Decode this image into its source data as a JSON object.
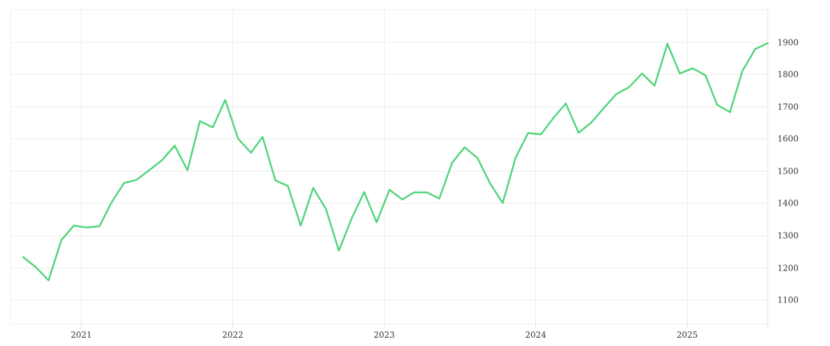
{
  "colors": {
    "line": "#4fd57a",
    "grid": "#ececec",
    "tick_text": "#333333",
    "background": "#ffffff"
  },
  "chart_data": {
    "type": "line",
    "title": "",
    "xlabel": "",
    "ylabel": "",
    "grid": true,
    "y_axis_position": "right",
    "ylim": [
      1025,
      2000
    ],
    "y_ticks": [
      1100,
      1200,
      1300,
      1400,
      1500,
      1600,
      1700,
      1800,
      1900
    ],
    "y_tick_labels": [
      "1100",
      "1200",
      "1300",
      "1400",
      "1500",
      "1600",
      "1700",
      "1800",
      "1900"
    ],
    "xlim": [
      "2020-07-15",
      "2025-07-15"
    ],
    "x_ticks": [
      "2021-01-01",
      "2022-01-01",
      "2023-01-01",
      "2024-01-01",
      "2025-01-01"
    ],
    "x_tick_labels": [
      "2021",
      "2022",
      "2023",
      "2024",
      "2025"
    ],
    "series": [
      {
        "x": [
          "2020-08",
          "2020-09",
          "2020-10",
          "2020-11",
          "2020-12",
          "2021-01",
          "2021-02",
          "2021-03",
          "2021-04",
          "2021-05",
          "2021-06",
          "2021-07",
          "2021-08",
          "2021-09",
          "2021-10",
          "2021-11",
          "2021-12",
          "2022-01",
          "2022-02",
          "2022-03",
          "2022-04",
          "2022-05",
          "2022-06",
          "2022-07",
          "2022-08",
          "2022-09",
          "2022-10",
          "2022-11",
          "2022-12",
          "2023-01",
          "2023-02",
          "2023-03",
          "2023-04",
          "2023-05",
          "2023-06",
          "2023-07",
          "2023-08",
          "2023-09",
          "2023-10",
          "2023-11",
          "2023-12",
          "2024-01",
          "2024-02",
          "2024-03",
          "2024-04",
          "2024-05",
          "2024-06",
          "2024-07",
          "2024-08",
          "2024-09",
          "2024-10",
          "2024-11",
          "2024-12",
          "2025-01",
          "2025-02",
          "2025-03",
          "2025-04",
          "2025-05",
          "2025-06",
          "2025-07"
        ],
        "values": [
          1232,
          1200,
          1160,
          1285,
          1330,
          1324,
          1328,
          1400,
          1462,
          1472,
          1502,
          1532,
          1578,
          1502,
          1654,
          1635,
          1720,
          1600,
          1556,
          1605,
          1470,
          1453,
          1330,
          1447,
          1381,
          1252,
          1350,
          1434,
          1340,
          1441,
          1411,
          1433,
          1433,
          1414,
          1525,
          1573,
          1540,
          1460,
          1400,
          1540,
          1617,
          1613,
          1665,
          1709,
          1618,
          1649,
          1695,
          1738,
          1760,
          1802,
          1764,
          1894,
          1802,
          1818,
          1796,
          1705,
          1682,
          1810,
          1878,
          1896
        ]
      }
    ]
  }
}
